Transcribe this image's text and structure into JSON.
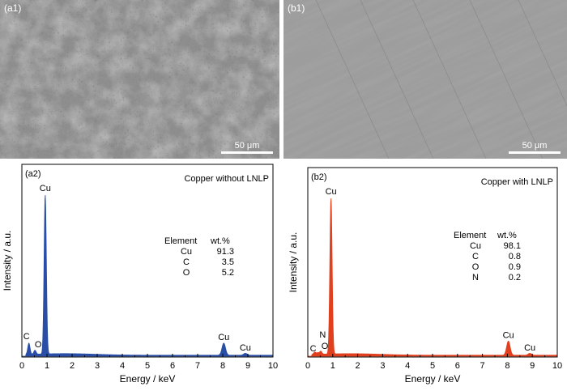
{
  "images": [
    {
      "label": "(a1)",
      "scale": "50 μm",
      "kind": "textured"
    },
    {
      "label": "(b1)",
      "scale": "50 μm",
      "kind": "smooth"
    }
  ],
  "chart_data": [
    {
      "panel_label": "(a2)",
      "type": "area",
      "title": "Copper without LNLP",
      "xlabel": "Energy / keV",
      "ylabel": "Intensity / a.u.",
      "xlim": [
        0,
        10
      ],
      "xticks": [
        "0",
        "1",
        "2",
        "3",
        "4",
        "5",
        "6",
        "7",
        "8",
        "9",
        "10"
      ],
      "color": "#2a4ea6",
      "peaks": [
        {
          "label": "C",
          "x": 0.28,
          "y": 0.07
        },
        {
          "label": "O",
          "x": 0.52,
          "y": 0.025
        },
        {
          "label": "Cu",
          "x": 0.93,
          "y": 1.0
        },
        {
          "label": "Cu",
          "x": 8.04,
          "y": 0.075
        },
        {
          "label": "Cu",
          "x": 8.9,
          "y": 0.012
        }
      ],
      "table": {
        "headers": [
          "Element",
          "wt.%"
        ],
        "rows": [
          [
            "Cu",
            "91.3"
          ],
          [
            "C",
            "3.5"
          ],
          [
            "O",
            "5.2"
          ]
        ]
      }
    },
    {
      "panel_label": "(b2)",
      "type": "area",
      "title": "Copper with LNLP",
      "xlabel": "Energy / keV",
      "ylabel": "Intensity / a.u.",
      "xlim": [
        0,
        10
      ],
      "xticks": [
        "0",
        "1",
        "2",
        "3",
        "4",
        "5",
        "6",
        "7",
        "8",
        "9",
        "10"
      ],
      "color": "#e0401e",
      "peaks": [
        {
          "label": "C",
          "x": 0.28,
          "y": 0.015
        },
        {
          "label": "O",
          "x": 0.52,
          "y": 0.02
        },
        {
          "label": "N",
          "x": 0.4,
          "y": 0.01
        },
        {
          "label": "Cu",
          "x": 0.93,
          "y": 1.0
        },
        {
          "label": "Cu",
          "x": 8.04,
          "y": 0.09
        },
        {
          "label": "Cu",
          "x": 8.9,
          "y": 0.012
        }
      ],
      "table": {
        "headers": [
          "Element",
          "wt.%"
        ],
        "rows": [
          [
            "Cu",
            "98.1"
          ],
          [
            "C",
            "0.8"
          ],
          [
            "O",
            "0.9"
          ],
          [
            "N",
            "0.2"
          ]
        ]
      }
    }
  ]
}
